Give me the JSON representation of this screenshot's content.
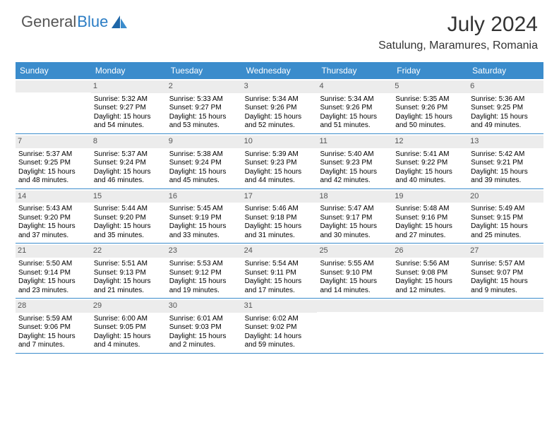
{
  "logo": {
    "word1": "General",
    "word2": "Blue"
  },
  "title": {
    "month": "July 2024",
    "location": "Satulung, Maramures, Romania"
  },
  "colors": {
    "headerBlue": "#3b8ccc",
    "logoBlue": "#2a7cc4",
    "border": "#3b8ccc",
    "dayBg": "#ececec"
  },
  "dayNames": [
    "Sunday",
    "Monday",
    "Tuesday",
    "Wednesday",
    "Thursday",
    "Friday",
    "Saturday"
  ],
  "weeks": [
    [
      {
        "n": "",
        "sr": "",
        "ss": "",
        "dl": ""
      },
      {
        "n": "1",
        "sr": "Sunrise: 5:32 AM",
        "ss": "Sunset: 9:27 PM",
        "dl": "Daylight: 15 hours and 54 minutes."
      },
      {
        "n": "2",
        "sr": "Sunrise: 5:33 AM",
        "ss": "Sunset: 9:27 PM",
        "dl": "Daylight: 15 hours and 53 minutes."
      },
      {
        "n": "3",
        "sr": "Sunrise: 5:34 AM",
        "ss": "Sunset: 9:26 PM",
        "dl": "Daylight: 15 hours and 52 minutes."
      },
      {
        "n": "4",
        "sr": "Sunrise: 5:34 AM",
        "ss": "Sunset: 9:26 PM",
        "dl": "Daylight: 15 hours and 51 minutes."
      },
      {
        "n": "5",
        "sr": "Sunrise: 5:35 AM",
        "ss": "Sunset: 9:26 PM",
        "dl": "Daylight: 15 hours and 50 minutes."
      },
      {
        "n": "6",
        "sr": "Sunrise: 5:36 AM",
        "ss": "Sunset: 9:25 PM",
        "dl": "Daylight: 15 hours and 49 minutes."
      }
    ],
    [
      {
        "n": "7",
        "sr": "Sunrise: 5:37 AM",
        "ss": "Sunset: 9:25 PM",
        "dl": "Daylight: 15 hours and 48 minutes."
      },
      {
        "n": "8",
        "sr": "Sunrise: 5:37 AM",
        "ss": "Sunset: 9:24 PM",
        "dl": "Daylight: 15 hours and 46 minutes."
      },
      {
        "n": "9",
        "sr": "Sunrise: 5:38 AM",
        "ss": "Sunset: 9:24 PM",
        "dl": "Daylight: 15 hours and 45 minutes."
      },
      {
        "n": "10",
        "sr": "Sunrise: 5:39 AM",
        "ss": "Sunset: 9:23 PM",
        "dl": "Daylight: 15 hours and 44 minutes."
      },
      {
        "n": "11",
        "sr": "Sunrise: 5:40 AM",
        "ss": "Sunset: 9:23 PM",
        "dl": "Daylight: 15 hours and 42 minutes."
      },
      {
        "n": "12",
        "sr": "Sunrise: 5:41 AM",
        "ss": "Sunset: 9:22 PM",
        "dl": "Daylight: 15 hours and 40 minutes."
      },
      {
        "n": "13",
        "sr": "Sunrise: 5:42 AM",
        "ss": "Sunset: 9:21 PM",
        "dl": "Daylight: 15 hours and 39 minutes."
      }
    ],
    [
      {
        "n": "14",
        "sr": "Sunrise: 5:43 AM",
        "ss": "Sunset: 9:20 PM",
        "dl": "Daylight: 15 hours and 37 minutes."
      },
      {
        "n": "15",
        "sr": "Sunrise: 5:44 AM",
        "ss": "Sunset: 9:20 PM",
        "dl": "Daylight: 15 hours and 35 minutes."
      },
      {
        "n": "16",
        "sr": "Sunrise: 5:45 AM",
        "ss": "Sunset: 9:19 PM",
        "dl": "Daylight: 15 hours and 33 minutes."
      },
      {
        "n": "17",
        "sr": "Sunrise: 5:46 AM",
        "ss": "Sunset: 9:18 PM",
        "dl": "Daylight: 15 hours and 31 minutes."
      },
      {
        "n": "18",
        "sr": "Sunrise: 5:47 AM",
        "ss": "Sunset: 9:17 PM",
        "dl": "Daylight: 15 hours and 30 minutes."
      },
      {
        "n": "19",
        "sr": "Sunrise: 5:48 AM",
        "ss": "Sunset: 9:16 PM",
        "dl": "Daylight: 15 hours and 27 minutes."
      },
      {
        "n": "20",
        "sr": "Sunrise: 5:49 AM",
        "ss": "Sunset: 9:15 PM",
        "dl": "Daylight: 15 hours and 25 minutes."
      }
    ],
    [
      {
        "n": "21",
        "sr": "Sunrise: 5:50 AM",
        "ss": "Sunset: 9:14 PM",
        "dl": "Daylight: 15 hours and 23 minutes."
      },
      {
        "n": "22",
        "sr": "Sunrise: 5:51 AM",
        "ss": "Sunset: 9:13 PM",
        "dl": "Daylight: 15 hours and 21 minutes."
      },
      {
        "n": "23",
        "sr": "Sunrise: 5:53 AM",
        "ss": "Sunset: 9:12 PM",
        "dl": "Daylight: 15 hours and 19 minutes."
      },
      {
        "n": "24",
        "sr": "Sunrise: 5:54 AM",
        "ss": "Sunset: 9:11 PM",
        "dl": "Daylight: 15 hours and 17 minutes."
      },
      {
        "n": "25",
        "sr": "Sunrise: 5:55 AM",
        "ss": "Sunset: 9:10 PM",
        "dl": "Daylight: 15 hours and 14 minutes."
      },
      {
        "n": "26",
        "sr": "Sunrise: 5:56 AM",
        "ss": "Sunset: 9:08 PM",
        "dl": "Daylight: 15 hours and 12 minutes."
      },
      {
        "n": "27",
        "sr": "Sunrise: 5:57 AM",
        "ss": "Sunset: 9:07 PM",
        "dl": "Daylight: 15 hours and 9 minutes."
      }
    ],
    [
      {
        "n": "28",
        "sr": "Sunrise: 5:59 AM",
        "ss": "Sunset: 9:06 PM",
        "dl": "Daylight: 15 hours and 7 minutes."
      },
      {
        "n": "29",
        "sr": "Sunrise: 6:00 AM",
        "ss": "Sunset: 9:05 PM",
        "dl": "Daylight: 15 hours and 4 minutes."
      },
      {
        "n": "30",
        "sr": "Sunrise: 6:01 AM",
        "ss": "Sunset: 9:03 PM",
        "dl": "Daylight: 15 hours and 2 minutes."
      },
      {
        "n": "31",
        "sr": "Sunrise: 6:02 AM",
        "ss": "Sunset: 9:02 PM",
        "dl": "Daylight: 14 hours and 59 minutes."
      },
      {
        "n": "",
        "sr": "",
        "ss": "",
        "dl": ""
      },
      {
        "n": "",
        "sr": "",
        "ss": "",
        "dl": ""
      },
      {
        "n": "",
        "sr": "",
        "ss": "",
        "dl": ""
      }
    ]
  ]
}
